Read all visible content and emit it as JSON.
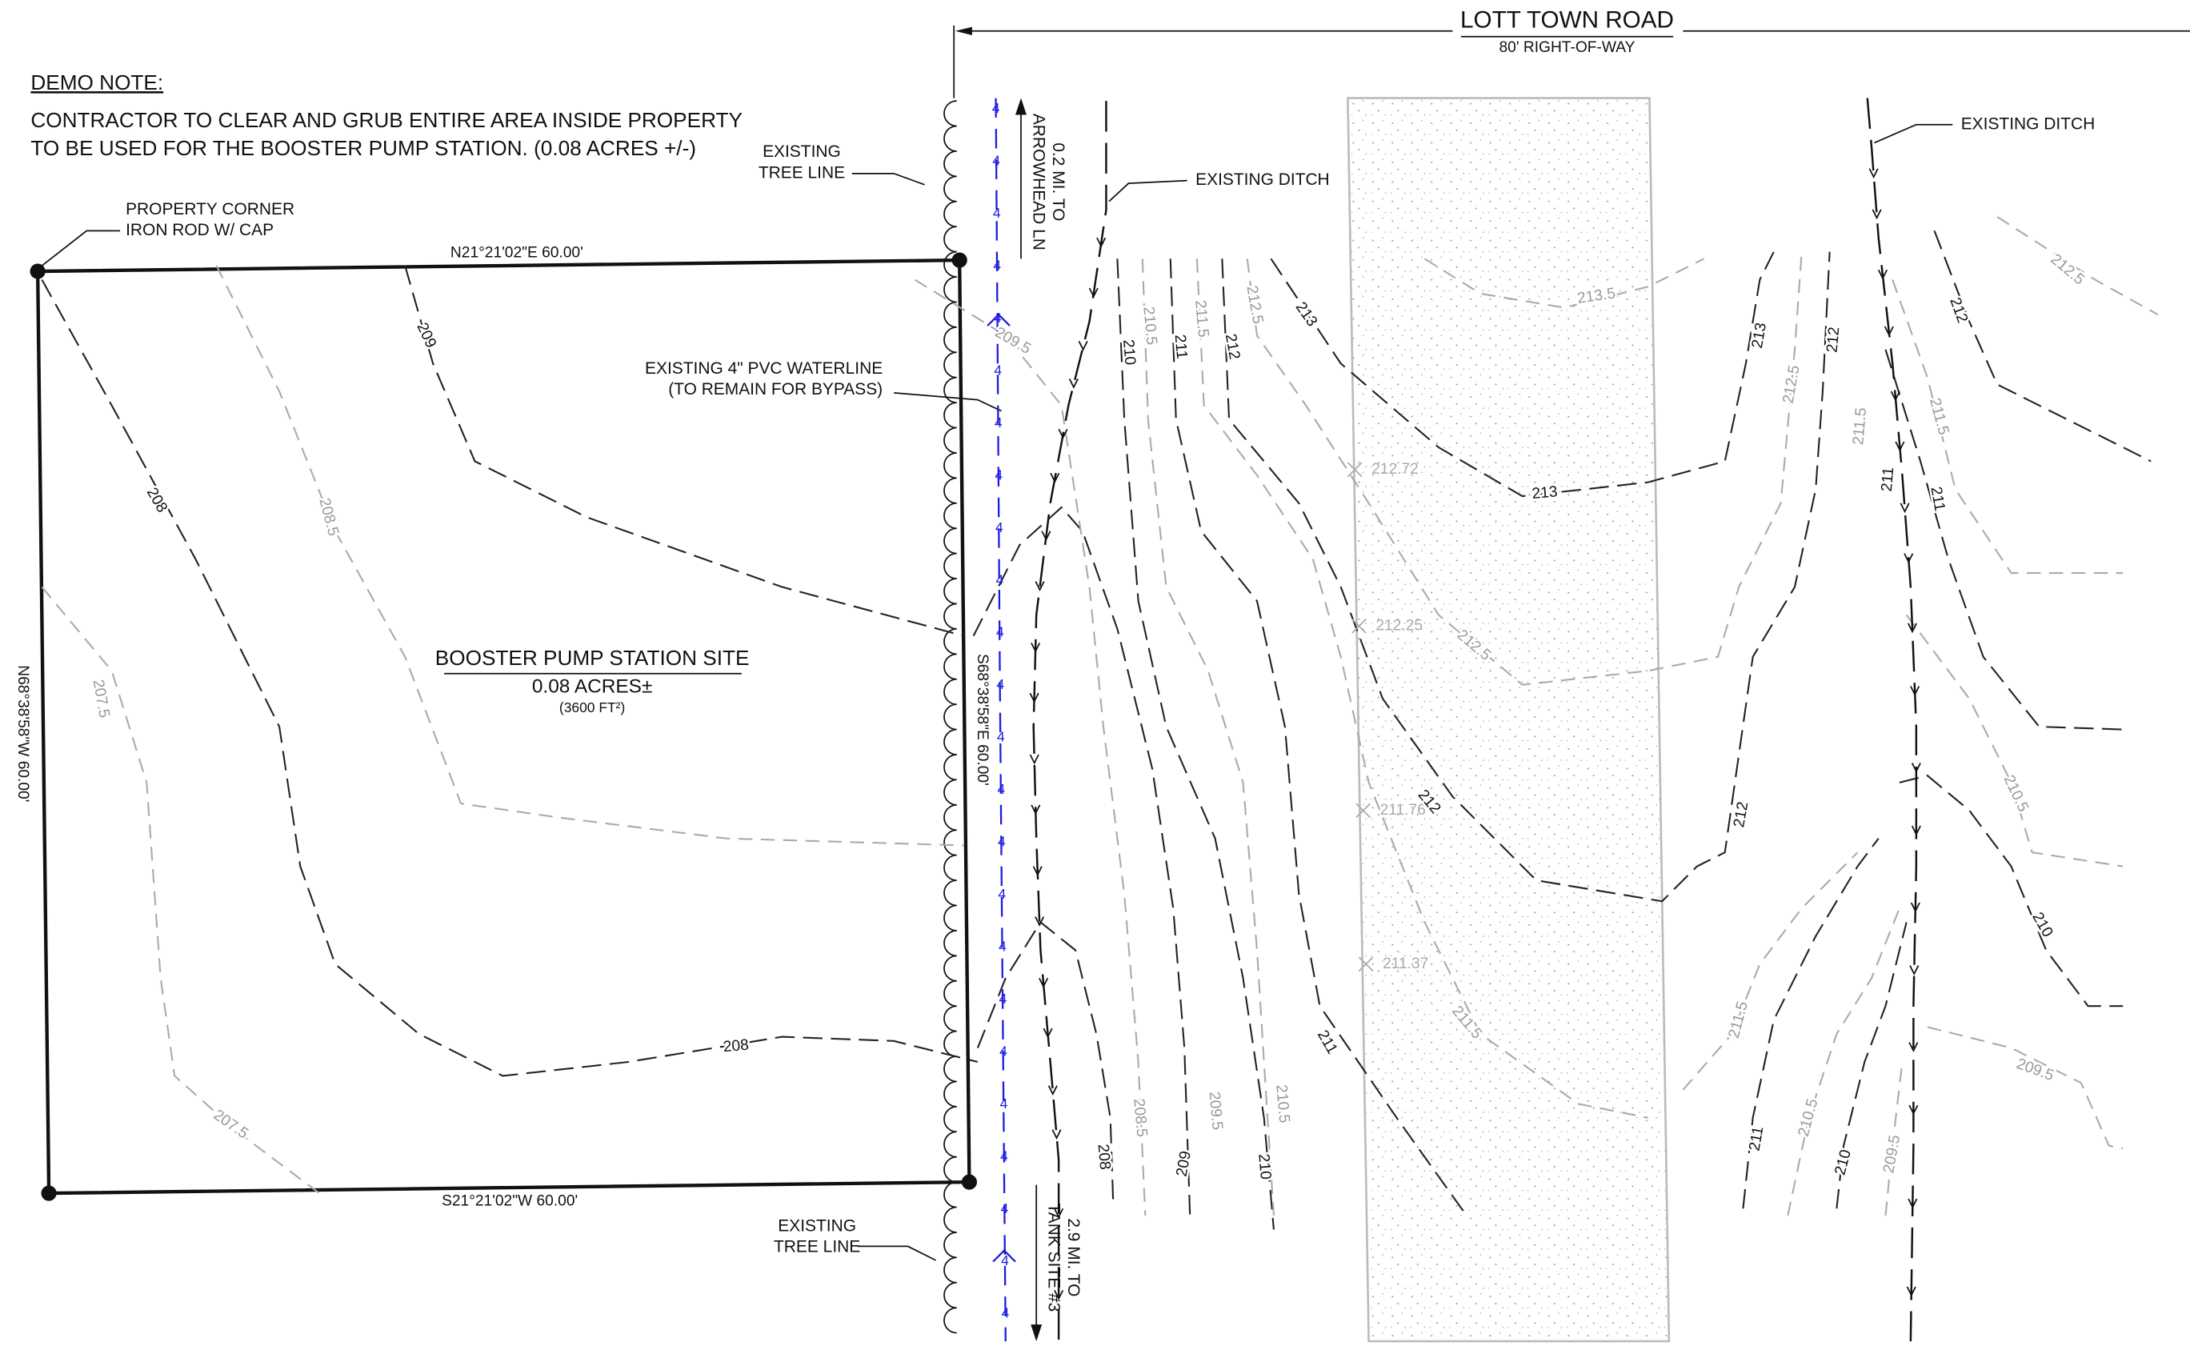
{
  "demo_note": {
    "title": "DEMO NOTE:",
    "lines": [
      "CONTRACTOR TO CLEAR AND GRUB ENTIRE AREA INSIDE PROPERTY",
      "TO BE USED FOR THE BOOSTER PUMP STATION. (0.08 ACRES +/-)"
    ]
  },
  "road": {
    "name": "LOTT TOWN ROAD",
    "right_of_way": "80' RIGHT-OF-WAY"
  },
  "callouts": {
    "property_corner": [
      "PROPERTY CORNER",
      "IRON ROD W/ CAP"
    ],
    "tree_line_top": [
      "EXISTING",
      "TREE LINE"
    ],
    "tree_line_bottom": [
      "EXISTING",
      "TREE LINE"
    ],
    "ditch_left": "EXISTING DITCH",
    "ditch_right": "EXISTING DITCH",
    "waterline": [
      "EXISTING 4\" PVC WATERLINE",
      "(TO REMAIN FOR BYPASS)"
    ],
    "north_arrow": [
      "0.2 MI. TO",
      "ARROWHEAD LN"
    ],
    "south_arrow": [
      "2.9 MI. TO",
      "TANK SITE #3"
    ]
  },
  "bearings": {
    "north": "N21°21'02\"E 60.00'",
    "east": "S68°38'58\"E 60.00'",
    "south": "S21°21'02\"W 60.00'",
    "west": "N68°38'58\"W 60.00'"
  },
  "site": {
    "name": "BOOSTER PUMP STATION SITE",
    "area": "0.08 ACRES±",
    "area_sqft": "(3600 FT²)"
  },
  "waterline_label": "4",
  "spot_elevations": [
    "212.72",
    "212.25",
    "211.76",
    "211.37"
  ],
  "contour_labels": [
    "209",
    "208",
    "208.5",
    "207.5",
    "207.5",
    "208",
    "209.5",
    "210.5",
    "210",
    "211",
    "211.5",
    "212",
    "212.5",
    "213",
    "213.5",
    "213",
    "212.5",
    "212",
    "211.5",
    "211",
    "208.5",
    "208",
    "209.5",
    "209",
    "210.5",
    "210",
    "213",
    "212.5",
    "212",
    "211.5",
    "211",
    "211",
    "211.5",
    "212",
    "212.5",
    "212",
    "210.5",
    "210",
    "211.5",
    "211",
    "210.5",
    "210",
    "209.5",
    "209.5"
  ]
}
